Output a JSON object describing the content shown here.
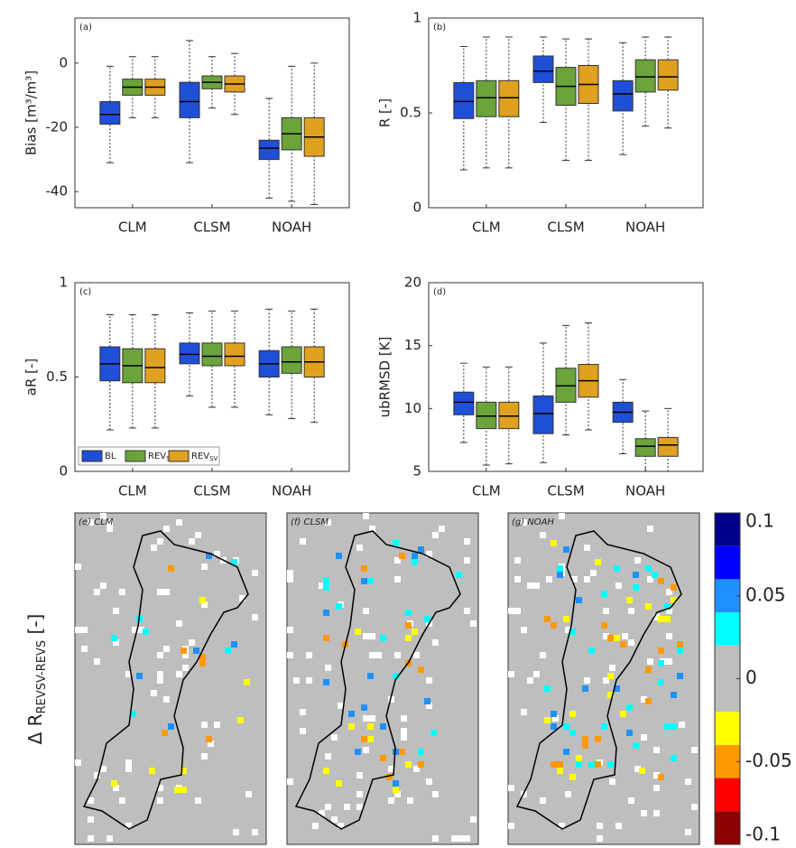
{
  "chart_data": [
    {
      "type": "box",
      "panel": "(a)",
      "ylabel": "Bias [m³/m³]",
      "ylim": [
        -45,
        14
      ],
      "yticks": [
        -40,
        -20,
        0
      ],
      "categories": [
        "CLM",
        "CLSM",
        "NOAH"
      ],
      "series": [
        {
          "color": "#1f4fd6",
          "whislo": [
            -31,
            -31,
            -42
          ],
          "q1": [
            -19,
            -17,
            -30
          ],
          "med": [
            -16,
            -12,
            -26.5
          ],
          "q3": [
            -12,
            -6,
            -24
          ],
          "whishi": [
            -1,
            7,
            -11
          ]
        },
        {
          "color": "#6aa43a",
          "whislo": [
            -17,
            -14,
            -43
          ],
          "q1": [
            -10,
            -8,
            -27
          ],
          "med": [
            -7.5,
            -6,
            -22
          ],
          "q3": [
            -5,
            -4,
            -17
          ],
          "whishi": [
            2,
            2,
            -1
          ]
        },
        {
          "color": "#e0a020",
          "whislo": [
            -17,
            -16,
            -44
          ],
          "q1": [
            -10,
            -9,
            -29
          ],
          "med": [
            -7.5,
            -6.5,
            -23
          ],
          "q3": [
            -5,
            -4,
            -17
          ],
          "whishi": [
            2,
            3,
            0
          ]
        }
      ]
    },
    {
      "type": "box",
      "panel": "(b)",
      "ylabel": "R [-]",
      "ylim": [
        0,
        1
      ],
      "yticks": [
        0,
        0.5,
        1
      ],
      "categories": [
        "CLM",
        "CLSM",
        "NOAH"
      ],
      "series": [
        {
          "color": "#1f4fd6",
          "whislo": [
            0.2,
            0.45,
            0.28
          ],
          "q1": [
            0.47,
            0.66,
            0.51
          ],
          "med": [
            0.56,
            0.72,
            0.6
          ],
          "q3": [
            0.66,
            0.8,
            0.67
          ],
          "whishi": [
            0.85,
            0.9,
            0.87
          ]
        },
        {
          "color": "#6aa43a",
          "whislo": [
            0.21,
            0.25,
            0.43
          ],
          "q1": [
            0.48,
            0.54,
            0.61
          ],
          "med": [
            0.58,
            0.64,
            0.69
          ],
          "q3": [
            0.67,
            0.74,
            0.78
          ],
          "whishi": [
            0.9,
            0.89,
            0.9
          ]
        },
        {
          "color": "#e0a020",
          "whislo": [
            0.21,
            0.25,
            0.42
          ],
          "q1": [
            0.48,
            0.55,
            0.62
          ],
          "med": [
            0.58,
            0.65,
            0.69
          ],
          "q3": [
            0.67,
            0.75,
            0.78
          ],
          "whishi": [
            0.9,
            0.89,
            0.9
          ]
        }
      ]
    },
    {
      "type": "box",
      "panel": "(c)",
      "ylabel": "aR [-]",
      "ylim": [
        0,
        1
      ],
      "yticks": [
        0,
        0.5,
        1
      ],
      "legend": "lower left",
      "categories": [
        "CLM",
        "CLSM",
        "NOAH"
      ],
      "series": [
        {
          "name": "BL",
          "color": "#1f4fd6",
          "whislo": [
            0.22,
            0.4,
            0.3
          ],
          "q1": [
            0.48,
            0.57,
            0.5
          ],
          "med": [
            0.57,
            0.62,
            0.57
          ],
          "q3": [
            0.66,
            0.68,
            0.64
          ],
          "whishi": [
            0.83,
            0.84,
            0.86
          ]
        },
        {
          "name": "REV",
          "sub": "S",
          "color": "#6aa43a",
          "whislo": [
            0.23,
            0.34,
            0.28
          ],
          "q1": [
            0.47,
            0.56,
            0.52
          ],
          "med": [
            0.56,
            0.61,
            0.58
          ],
          "q3": [
            0.65,
            0.68,
            0.66
          ],
          "whishi": [
            0.83,
            0.85,
            0.85
          ]
        },
        {
          "name": "REV",
          "sub": "SV",
          "color": "#e0a020",
          "whislo": [
            0.23,
            0.34,
            0.26
          ],
          "q1": [
            0.47,
            0.56,
            0.5
          ],
          "med": [
            0.55,
            0.61,
            0.58
          ],
          "q3": [
            0.65,
            0.68,
            0.66
          ],
          "whishi": [
            0.83,
            0.85,
            0.86
          ]
        }
      ]
    },
    {
      "type": "box",
      "panel": "(d)",
      "ylabel": "ubRMSD [K]",
      "ylim": [
        5,
        20
      ],
      "yticks": [
        5,
        10,
        15,
        20
      ],
      "categories": [
        "CLM",
        "CLSM",
        "NOAH"
      ],
      "series": [
        {
          "color": "#1f4fd6",
          "whislo": [
            7.3,
            5.7,
            6.4
          ],
          "q1": [
            9.5,
            8,
            8.9
          ],
          "med": [
            10.5,
            9.6,
            9.7
          ],
          "q3": [
            11.3,
            11,
            10.5
          ],
          "whishi": [
            13.6,
            15.2,
            12.3
          ]
        },
        {
          "color": "#6aa43a",
          "whislo": [
            5.5,
            7.9,
            5
          ],
          "q1": [
            8.4,
            10.5,
            6.2
          ],
          "med": [
            9.4,
            11.8,
            7
          ],
          "q3": [
            10.5,
            13.2,
            7.6
          ],
          "whishi": [
            13.3,
            16.6,
            9.8
          ]
        },
        {
          "color": "#e0a020",
          "whislo": [
            5.6,
            8.3,
            5
          ],
          "q1": [
            8.4,
            10.9,
            6.2
          ],
          "med": [
            9.4,
            12.2,
            7.1
          ],
          "q3": [
            10.5,
            13.5,
            7.7
          ],
          "whishi": [
            13.3,
            16.8,
            10
          ]
        }
      ]
    },
    {
      "type": "map",
      "panels": [
        "(e) CLM",
        "(f) CLSM",
        "(g) NOAH"
      ],
      "colorbar_label": "Δ R",
      "colorbar_label_sub": "REVSV-REVS",
      "colorbar_label_end": " [-]",
      "clim": [
        -0.1,
        0.1
      ],
      "cticks": [
        0.1,
        0.05,
        0,
        -0.05,
        -0.1
      ],
      "bounds": [
        0.1,
        0.08,
        0.06,
        0.04,
        0.02,
        -0.02,
        -0.04,
        -0.06,
        -0.08,
        -0.1
      ],
      "colors": [
        "#00008b",
        "#0000ff",
        "#1e90ff",
        "#00ffff",
        "#bebebe",
        "#ffff00",
        "#ff9900",
        "#ff0000",
        "#8b0000"
      ]
    }
  ]
}
